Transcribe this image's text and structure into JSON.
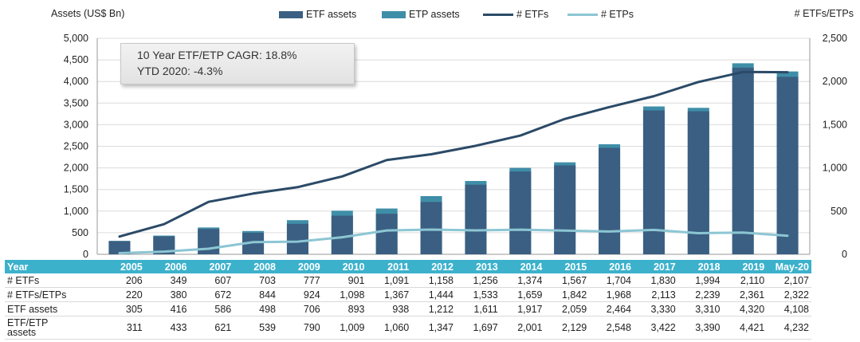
{
  "chart_data": {
    "type": "bar+line",
    "left_axis_label": "Assets (US$ Bn)",
    "right_axis_label": "# ETFs/ETPs",
    "left_ylim": [
      0,
      5000
    ],
    "right_ylim": [
      0,
      2500
    ],
    "left_ticks": [
      "5,000",
      "4,500",
      "4,000",
      "3,500",
      "3,000",
      "2,500",
      "2,000",
      "1,500",
      "1,000",
      "500",
      "0"
    ],
    "right_ticks": [
      "2,500",
      "2,000",
      "1,500",
      "1,000",
      "500",
      "0"
    ],
    "categories": [
      "2005",
      "2006",
      "2007",
      "2008",
      "2009",
      "2010",
      "2011",
      "2012",
      "2013",
      "2014",
      "2015",
      "2016",
      "2017",
      "2018",
      "2019",
      "May-20"
    ],
    "series": [
      {
        "name": "ETF assets",
        "type": "bar",
        "axis": "left",
        "color": "#3a5f82",
        "values": [
          305,
          416,
          586,
          498,
          706,
          893,
          938,
          1212,
          1611,
          1917,
          2059,
          2464,
          3330,
          3310,
          4320,
          4108
        ]
      },
      {
        "name": "ETP assets",
        "type": "bar",
        "axis": "left",
        "color": "#3f8ea8",
        "values": [
          311,
          433,
          621,
          539,
          790,
          1009,
          1060,
          1347,
          1697,
          2001,
          2129,
          2548,
          3422,
          3390,
          4421,
          4232
        ]
      },
      {
        "name": "# ETFs",
        "type": "line",
        "axis": "right",
        "color": "#2b4a67",
        "values": [
          206,
          349,
          607,
          703,
          777,
          901,
          1091,
          1158,
          1256,
          1374,
          1567,
          1704,
          1830,
          1994,
          2110,
          2107
        ]
      },
      {
        "name": "# ETPs",
        "type": "line",
        "axis": "right",
        "color": "#8cc6d3",
        "values": [
          14,
          31,
          65,
          141,
          147,
          197,
          276,
          286,
          277,
          285,
          275,
          264,
          283,
          245,
          251,
          215
        ]
      }
    ],
    "grid": true,
    "legend_position": "top"
  },
  "annotation": {
    "line1": "10 Year ETF/ETP CAGR: 18.8%",
    "line2": "YTD 2020: -4.3%"
  },
  "table": {
    "header_label": "Year",
    "columns": [
      "2005",
      "2006",
      "2007",
      "2008",
      "2009",
      "2010",
      "2011",
      "2012",
      "2013",
      "2014",
      "2015",
      "2016",
      "2017",
      "2018",
      "2019",
      "May-20"
    ],
    "rows": [
      {
        "label": "# ETFs",
        "values": [
          "206",
          "349",
          "607",
          "703",
          "777",
          "901",
          "1,091",
          "1,158",
          "1,256",
          "1,374",
          "1,567",
          "1,704",
          "1,830",
          "1,994",
          "2,110",
          "2,107"
        ]
      },
      {
        "label": "# ETFs/ETPs",
        "values": [
          "220",
          "380",
          "672",
          "844",
          "924",
          "1,098",
          "1,367",
          "1,444",
          "1,533",
          "1,659",
          "1,842",
          "1,968",
          "2,113",
          "2,239",
          "2,361",
          "2,322"
        ]
      },
      {
        "label": "ETF assets",
        "values": [
          "305",
          "416",
          "586",
          "498",
          "706",
          "893",
          "938",
          "1,212",
          "1,611",
          "1,917",
          "2,059",
          "2,464",
          "3,330",
          "3,310",
          "4,320",
          "4,108"
        ]
      },
      {
        "label": "ETF/ETP\nassets",
        "values": [
          "311",
          "433",
          "621",
          "539",
          "790",
          "1,009",
          "1,060",
          "1,347",
          "1,697",
          "2,001",
          "2,129",
          "2,548",
          "3,422",
          "3,390",
          "4,421",
          "4,232"
        ]
      }
    ]
  }
}
